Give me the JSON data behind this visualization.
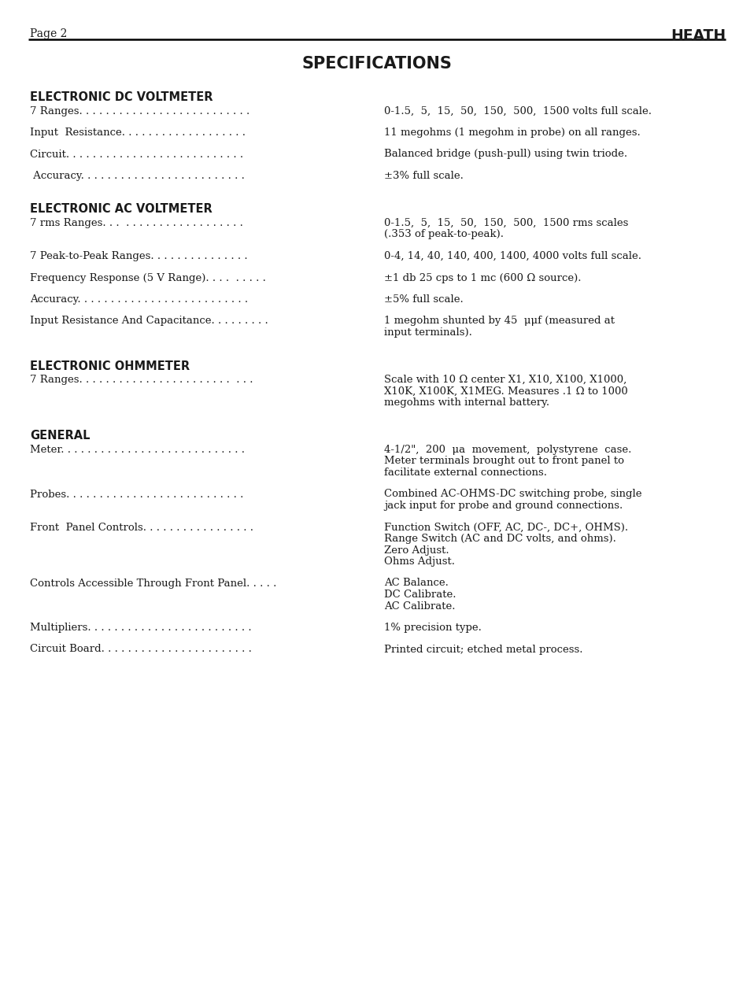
{
  "page_label": "Page 2",
  "brand": "HEATH",
  "title": "SPECIFICATIONS",
  "background_color": "#ffffff",
  "text_color": "#1a1a1a",
  "sections": [
    {
      "type": "section_header",
      "text": "ELECTRONIC DC VOLTMETER"
    },
    {
      "type": "spec_row",
      "label": "7 Ranges. . . . . . . . . . . . . . . . . . . . . . . . . .",
      "value": "0-1.5,  5,  15,  50,  150,  500,  1500 volts full scale."
    },
    {
      "type": "spec_row",
      "label": "Input  Resistance. . . . . . . . . . . . . . . . . . .",
      "value": "11 megohms (1 megohm in probe) on all ranges."
    },
    {
      "type": "spec_row",
      "label": "Circuit. . . . . . . . . . . . . . . . . . . . . . . . . . .",
      "value": "Balanced bridge (push-pull) using twin triode."
    },
    {
      "type": "spec_row",
      "label": " Accuracy. . . . . . . . . . . . . . . . . . . . . . . . .",
      "value": "±3% full scale."
    },
    {
      "type": "section_header",
      "text": "ELECTRONIC AC VOLTMETER"
    },
    {
      "type": "spec_row",
      "label": "7 rms Ranges. . .  . . . . . . . . . . . . . . . . . .",
      "value": "0-1.5,  5,  15,  50,  150,  500,  1500 rms scales\n(.353 of peak-to-peak)."
    },
    {
      "type": "spec_row",
      "label": "7 Peak-to-Peak Ranges. . . . . . . . . . . . . . .",
      "value": "0-4, 14, 40, 140, 400, 1400, 4000 volts full scale."
    },
    {
      "type": "spec_row",
      "label": "Frequency Response (5 V Range). . . .  . . . . .",
      "value": "±1 db 25 cps to 1 mc (600 Ω source)."
    },
    {
      "type": "spec_row",
      "label": "Accuracy. . . . . . . . . . . . . . . . . . . . . . . . . .",
      "value": "±5% full scale."
    },
    {
      "type": "spec_row",
      "label": "Input Resistance And Capacitance. . . . . . . . .",
      "value": "1 megohm shunted by 45  μμf (measured at\ninput terminals)."
    },
    {
      "type": "section_header",
      "text": "ELECTRONIC OHMMETER"
    },
    {
      "type": "spec_row",
      "label": "7 Ranges. . . . . . . . . . . . . . . . . . . . . . .  . . .",
      "value": "Scale with 10 Ω center X1, X10, X100, X1000,\nX10K, X100K, X1MEG. Measures .1 Ω to 1000\nmegohms with internal battery."
    },
    {
      "type": "section_header",
      "text": "GENERAL"
    },
    {
      "type": "spec_row",
      "label": "Meter. . . . . . . . . . . . . . . . . . . . . . . . . . . .",
      "value": "4-1/2\",  200  μa  movement,  polystyrene  case.\nMeter terminals brought out to front panel to\nfacilitate external connections."
    },
    {
      "type": "spec_row",
      "label": "Probes. . . . . . . . . . . . . . . . . . . . . . . . . . .",
      "value": "Combined AC-OHMS-DC switching probe, single\njack input for probe and ground connections."
    },
    {
      "type": "spec_row",
      "label": "Front  Panel Controls. . . . . . . . . . . . . . . . .",
      "value": "Function Switch (OFF, AC, DC-, DC+, OHMS).\nRange Switch (AC and DC volts, and ohms).\nZero Adjust.\nOhms Adjust."
    },
    {
      "type": "spec_row",
      "label": "Controls Accessible Through Front Panel. . . . .",
      "value": "AC Balance.\nDC Calibrate.\nAC Calibrate."
    },
    {
      "type": "spec_row",
      "label": "Multipliers. . . . . . . . . . . . . . . . . . . . . . . . .",
      "value": "1% precision type."
    },
    {
      "type": "spec_row",
      "label": "Circuit Board. . . . . . . . . . . . . . . . . . . . . . .",
      "value": "Printed circuit; etched metal process."
    }
  ]
}
